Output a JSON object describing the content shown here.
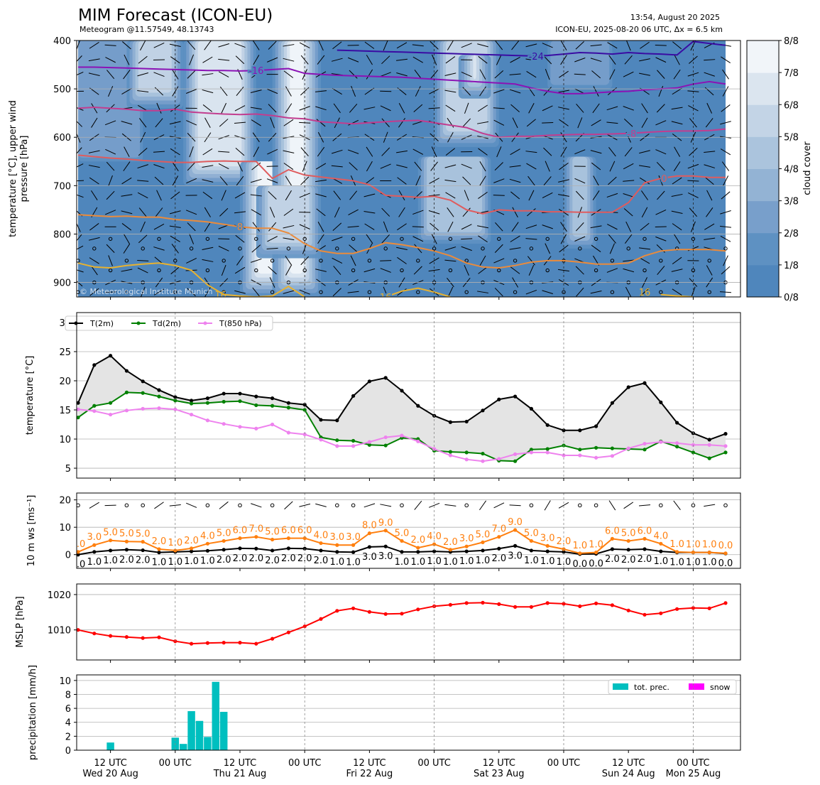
{
  "header": {
    "title": "MIM Forecast (ICON-EU)",
    "subtitle": "Meteogram @11.57549, 48.13743",
    "issued": "13:54, August 20 2025",
    "model_info": "ICON-EU, 2025-08-20 06 UTC, Δx = 6.5 km",
    "copyright": "© Meteorological Institute Munich"
  },
  "chart_data": [
    {
      "type": "heatmap",
      "ylabel": "temperature [°C], upper wind\npressure [hPa]",
      "ylim": [
        930,
        400
      ],
      "yticks": [
        400,
        500,
        600,
        700,
        800,
        900
      ],
      "colorbar": {
        "label": "cloud cover",
        "ticks": [
          "0/8",
          "1/8",
          "2/8",
          "3/8",
          "4/8",
          "5/8",
          "6/8",
          "7/8",
          "8/8"
        ],
        "colors": [
          "#4f86bc",
          "#5e91c2",
          "#789fcb",
          "#93b3d4",
          "#abc4dd",
          "#c3d4e6",
          "#dbe5ef",
          "#f1f5f9"
        ]
      },
      "cloud_bands": [
        {
          "x_start": -2.5,
          "x_end": 4.0,
          "p_top": 400,
          "p_bottom": 650,
          "level": 2
        },
        {
          "x_start": 3.0,
          "x_end": 6.5,
          "p_top": 400,
          "p_bottom": 540,
          "level": 5
        },
        {
          "x_start": 6.5,
          "x_end": 11.0,
          "p_top": 400,
          "p_bottom": 700,
          "level": 6
        },
        {
          "x_start": 10.0,
          "x_end": 14.0,
          "p_top": 650,
          "p_bottom": 930,
          "level": 7
        },
        {
          "x_start": 12.0,
          "x_end": 15.0,
          "p_top": 400,
          "p_bottom": 930,
          "level": 7
        },
        {
          "x_start": 11.0,
          "x_end": 15.0,
          "p_top": 700,
          "p_bottom": 850,
          "level": 5
        },
        {
          "x_start": 22.0,
          "x_end": 26.0,
          "p_top": 400,
          "p_bottom": 620,
          "level": 5
        },
        {
          "x_start": 23.5,
          "x_end": 25.5,
          "p_top": 430,
          "p_bottom": 520,
          "level": 7
        },
        {
          "x_start": 21.0,
          "x_end": 25.5,
          "p_top": 640,
          "p_bottom": 820,
          "level": 4
        },
        {
          "x_start": 30.0,
          "x_end": 32.0,
          "p_top": 640,
          "p_bottom": 830,
          "level": 4
        },
        {
          "x_start": 29.0,
          "x_end": 33.0,
          "p_top": 400,
          "p_bottom": 500,
          "level": 2
        }
      ],
      "isotherms": [
        {
          "label": "-24",
          "color": "#3a0ca3",
          "label_x": 28.3,
          "p": [
            null,
            null,
            null,
            null,
            null,
            null,
            null,
            null,
            null,
            null,
            null,
            null,
            null,
            null,
            null,
            null,
            420,
            421,
            422,
            423,
            424,
            425,
            426,
            427,
            428,
            429,
            430,
            431,
            432,
            431,
            428,
            425,
            426,
            428,
            425,
            427,
            428,
            430,
            402,
            406,
            410
          ]
        },
        {
          "label": "-16",
          "color": "#8b13b5",
          "label_x": 11.0,
          "p": [
            455,
            455,
            456,
            457,
            458,
            459,
            460,
            461,
            462,
            462,
            463,
            462,
            460,
            458,
            468,
            470,
            472,
            473,
            474,
            475,
            476,
            478,
            480,
            482,
            484,
            486,
            488,
            490,
            498,
            505,
            510,
            510,
            508,
            506,
            505,
            502,
            500,
            498,
            490,
            485,
            490
          ]
        },
        {
          "label": "-8",
          "color": "#c23d8f",
          "label_x": 34.2,
          "p": [
            540,
            538,
            540,
            542,
            545,
            545,
            542,
            548,
            550,
            552,
            553,
            552,
            555,
            560,
            562,
            568,
            570,
            572,
            570,
            568,
            566,
            565,
            570,
            575,
            580,
            592,
            600,
            598,
            598,
            596,
            595,
            594,
            594,
            593,
            592,
            590,
            588,
            587,
            587,
            586,
            583
          ]
        },
        {
          "label": "0",
          "color": "#df5c5e",
          "label_x": 36.2,
          "p": [
            637,
            640,
            643,
            645,
            648,
            650,
            652,
            652,
            650,
            649,
            650,
            650,
            685,
            667,
            678,
            682,
            686,
            690,
            698,
            720,
            722,
            724,
            722,
            730,
            750,
            758,
            750,
            752,
            752,
            754,
            754,
            755,
            755,
            755,
            735,
            694,
            685,
            680,
            680,
            683,
            683
          ]
        },
        {
          "label": "8",
          "color": "#ea8b3c",
          "label_x": 10.0,
          "p": [
            760,
            762,
            764,
            763,
            765,
            765,
            770,
            772,
            775,
            780,
            785,
            788,
            788,
            798,
            820,
            835,
            840,
            840,
            830,
            818,
            822,
            828,
            835,
            845,
            860,
            868,
            870,
            865,
            858,
            855,
            855,
            858,
            862,
            862,
            860,
            845,
            835,
            832,
            832,
            832,
            835
          ]
        },
        {
          "label": "16",
          "color": "#e8b22f",
          "label_x": 19.0,
          "p": [
            860,
            868,
            870,
            865,
            862,
            860,
            865,
            875,
            905,
            925,
            928,
            930,
            928,
            908,
            930,
            null,
            null,
            null,
            null,
            930,
            918,
            912,
            920,
            930,
            null,
            null,
            null,
            null,
            null,
            null,
            null,
            null,
            null,
            null,
            null,
            null,
            925,
            928,
            930,
            null,
            null
          ]
        }
      ],
      "isotherm_extra_labels": [
        {
          "text": "16",
          "x": 8.8,
          "p": 925,
          "color": "#e8b22f"
        },
        {
          "text": "16",
          "x": 35.0,
          "p": 920,
          "color": "#e8b22f"
        }
      ]
    },
    {
      "type": "line",
      "ylabel": "temperature [°C]",
      "ylim": [
        3.3,
        31.7
      ],
      "yticks": [
        5,
        10,
        15,
        20,
        25,
        30
      ],
      "legend": "top-left",
      "series": [
        {
          "name": "T(2m)",
          "color": "#000000",
          "values": [
            16.2,
            22.7,
            24.3,
            21.7,
            19.9,
            18.4,
            17.2,
            16.6,
            17.0,
            17.8,
            17.8,
            17.3,
            17.0,
            16.2,
            15.9,
            13.3,
            13.2,
            17.4,
            19.9,
            20.5,
            18.3,
            15.7,
            14.0,
            12.9,
            13.0,
            14.9,
            16.8,
            17.3,
            15.2,
            12.4,
            11.5,
            11.5,
            12.2,
            16.2,
            18.9,
            19.6,
            16.3,
            12.8,
            11.0,
            9.9,
            10.9
          ]
        },
        {
          "name": "Td(2m)",
          "color": "#008000",
          "values": [
            13.7,
            15.7,
            16.2,
            18.0,
            17.9,
            17.3,
            16.6,
            16.1,
            16.2,
            16.4,
            16.5,
            15.8,
            15.7,
            15.4,
            15.0,
            10.3,
            9.8,
            9.7,
            9.0,
            8.9,
            10.2,
            10.0,
            8.0,
            7.8,
            7.7,
            7.5,
            6.3,
            6.2,
            8.2,
            8.3,
            8.9,
            8.2,
            8.5,
            8.4,
            8.3,
            8.2,
            9.6,
            8.7,
            7.7,
            6.7,
            7.7
          ]
        },
        {
          "name": "T(850 hPa)",
          "color": "#ee82ee",
          "values": [
            15.1,
            14.8,
            14.2,
            14.9,
            15.2,
            15.3,
            15.1,
            14.2,
            13.2,
            12.6,
            12.1,
            11.8,
            12.5,
            11.1,
            10.8,
            9.9,
            8.8,
            8.8,
            9.5,
            10.3,
            10.6,
            9.6,
            8.3,
            7.2,
            6.5,
            6.2,
            6.6,
            7.4,
            7.7,
            7.7,
            7.2,
            7.2,
            6.8,
            7.1,
            8.4,
            9.2,
            9.5,
            9.3,
            9.0,
            9.0,
            8.8
          ]
        }
      ]
    },
    {
      "type": "line",
      "ylabel": "10 m ws [ms⁻¹]",
      "ylim": [
        -5,
        22.5
      ],
      "yticks": [
        0,
        10,
        20
      ],
      "barb_row_value": 18,
      "series": [
        {
          "name": "",
          "color": "#000000",
          "values": [
            0.0,
            1.0,
            1.5,
            1.8,
            1.6,
            0.8,
            1.0,
            1.2,
            1.4,
            1.8,
            2.3,
            2.2,
            1.5,
            2.3,
            2.2,
            1.5,
            1.0,
            0.9,
            2.8,
            3.0,
            1.0,
            1.0,
            1.2,
            1.0,
            1.2,
            1.5,
            2.2,
            3.2,
            1.5,
            1.2,
            1.0,
            0.2,
            0.3,
            2.0,
            1.8,
            2.0,
            1.2,
            0.8,
            0.8,
            0.8,
            0.4
          ]
        },
        {
          "name": "",
          "color": "#ff7f0e",
          "values": [
            1.0,
            3.5,
            5.2,
            4.8,
            4.7,
            2.0,
            1.5,
            2.3,
            4.0,
            5.0,
            6.0,
            6.5,
            5.5,
            6.0,
            6.0,
            4.2,
            3.5,
            3.5,
            7.8,
            8.8,
            5.0,
            2.5,
            3.8,
            1.8,
            3.0,
            4.5,
            6.5,
            9.0,
            5.0,
            3.2,
            2.0,
            0.5,
            0.8,
            5.8,
            5.0,
            5.8,
            4.0,
            1.0,
            0.8,
            0.8,
            0.5
          ]
        }
      ],
      "black_labels": [
        "0.0",
        "1.0",
        "1.0",
        "2.0",
        "2.0",
        "1.0",
        "1.0",
        "1.0",
        "1.0",
        "2.0",
        "2.0",
        "2.0",
        "2.0",
        "2.0",
        "2.0",
        "2.0",
        "1.0",
        "1.0",
        "3.0",
        "3.0",
        "1.0",
        "1.0",
        "1.0",
        "1.0",
        "1.0",
        "1.0",
        "2.0",
        "3.0",
        "1.0",
        "1.0",
        "1.0",
        "0.0",
        "0.0",
        "2.0",
        "2.0",
        "2.0",
        "1.0",
        "1.0",
        "1.0",
        "1.0",
        "0.0"
      ],
      "orange_labels": [
        "1.0",
        "3.0",
        "5.0",
        "5.0",
        "5.0",
        "2.0",
        "1.0",
        "2.0",
        "4.0",
        "5.0",
        "6.0",
        "7.0",
        "5.0",
        "6.0",
        "6.0",
        "4.0",
        "3.0",
        "3.0",
        "8.0",
        "9.0",
        "5.0",
        "2.0",
        "4.0",
        "2.0",
        "3.0",
        "5.0",
        "7.0",
        "9.0",
        "5.0",
        "3.0",
        "2.0",
        "1.0",
        "1.0",
        "6.0",
        "5.0",
        "6.0",
        "4.0",
        "1.0",
        "1.0",
        "1.0",
        "0.0"
      ]
    },
    {
      "type": "line",
      "ylabel": "MSLP [hPa]",
      "ylim": [
        1001.5,
        1023
      ],
      "yticks": [
        1010,
        1020
      ],
      "series": [
        {
          "name": "",
          "color": "#ff0000",
          "values": [
            1010.0,
            1009.0,
            1008.3,
            1008.0,
            1007.7,
            1007.9,
            1006.8,
            1006.1,
            1006.3,
            1006.4,
            1006.4,
            1006.1,
            1007.5,
            1009.3,
            1011.0,
            1013.1,
            1015.4,
            1016.1,
            1015.1,
            1014.5,
            1014.6,
            1015.8,
            1016.7,
            1017.1,
            1017.6,
            1017.7,
            1017.3,
            1016.5,
            1016.5,
            1017.6,
            1017.4,
            1016.7,
            1017.5,
            1017.0,
            1015.5,
            1014.3,
            1014.7,
            1015.9,
            1016.2,
            1016.1,
            1017.6
          ]
        }
      ]
    },
    {
      "type": "bar",
      "ylabel": "precipitation [mm/h]",
      "ylim": [
        0,
        10.8
      ],
      "yticks": [
        0,
        2,
        4,
        6,
        8,
        10
      ],
      "legend": "top-right",
      "series": [
        {
          "name": "tot. prec.",
          "color": "#00bfbf",
          "values": [
            0,
            0,
            0.05,
            0,
            1.1,
            0.05,
            0.05,
            0,
            0,
            0,
            0,
            0,
            1.8,
            0.9,
            5.6,
            4.2,
            1.9,
            9.8,
            5.5,
            0,
            0,
            0,
            0,
            0,
            0,
            0,
            0,
            0,
            0,
            0,
            0.05,
            0,
            0.05,
            0,
            0,
            0,
            0,
            0,
            0,
            0,
            0,
            0,
            0,
            0,
            0,
            0,
            0,
            0,
            0,
            0,
            0,
            0,
            0,
            0,
            0,
            0,
            0,
            0,
            0,
            0,
            0,
            0,
            0
          ]
        },
        {
          "name": "snow",
          "color": "#ff00ff",
          "values": []
        }
      ]
    }
  ],
  "time_axis": {
    "ticks": [
      {
        "label": "12 UTC\nWed 20 Aug",
        "x": 2
      },
      {
        "label": "00 UTC",
        "x": 6
      },
      {
        "label": "12 UTC\nThu 21 Aug",
        "x": 10
      },
      {
        "label": "00 UTC",
        "x": 14
      },
      {
        "label": "12 UTC\nFri 22 Aug",
        "x": 18
      },
      {
        "label": "00 UTC",
        "x": 22
      },
      {
        "label": "12 UTC\nSat 23 Aug",
        "x": 26
      },
      {
        "label": "00 UTC",
        "x": 30
      },
      {
        "label": "12 UTC\nSun 24 Aug",
        "x": 34
      },
      {
        "label": "00 UTC\nMon 25 Aug",
        "x": 38
      }
    ]
  }
}
